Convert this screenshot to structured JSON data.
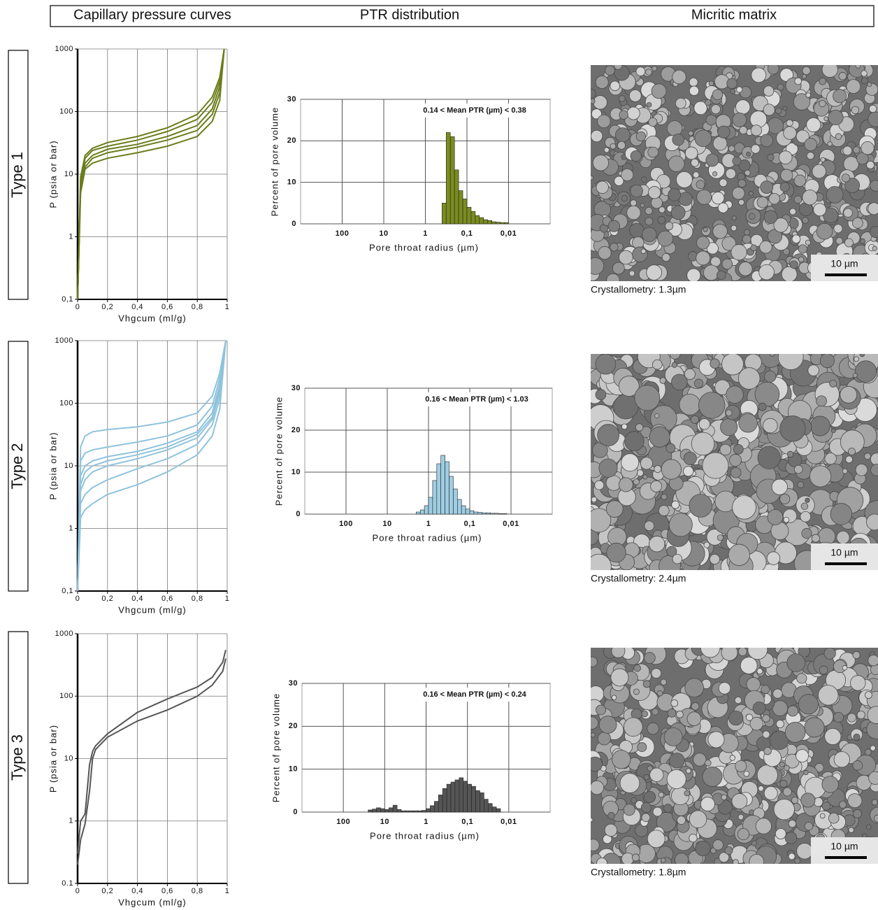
{
  "header": [
    "Capillary pressure curves",
    "PTR distribution",
    "Micritic matrix"
  ],
  "rows": [
    {
      "label": "Type 1",
      "scale_bar": "10 µm",
      "caption": "Crystallometry: 1.3µm"
    },
    {
      "label": "Type 2",
      "scale_bar": "10 µm",
      "caption": "Crystallometry: 2.4µm"
    },
    {
      "label": "Type 3",
      "scale_bar": "10 µm",
      "caption": "Crystallometry: 1.8µm"
    }
  ],
  "chart_data": [
    {
      "type": "line",
      "log_y": true,
      "grid": true,
      "xlabel": "Vhgcum (ml/g)",
      "ylabel": "P (psia or bar)",
      "x": [
        0,
        0.02,
        0.05,
        0.1,
        0.2,
        0.4,
        0.6,
        0.8,
        0.9,
        0.95,
        0.98
      ],
      "series": [
        {
          "color": "#6b7d1a",
          "values": [
            0.1,
            5,
            12,
            15,
            18,
            22,
            28,
            40,
            70,
            150,
            1000
          ]
        },
        {
          "color": "#6b7d1a",
          "values": [
            0.1,
            6,
            13,
            18,
            22,
            27,
            35,
            50,
            90,
            200,
            1000
          ]
        },
        {
          "color": "#6b7d1a",
          "values": [
            0.1,
            7,
            15,
            20,
            25,
            30,
            40,
            60,
            110,
            250,
            1000
          ]
        },
        {
          "color": "#6b7d1a",
          "values": [
            0.1,
            8,
            18,
            24,
            28,
            35,
            48,
            75,
            140,
            300,
            1000
          ]
        },
        {
          "color": "#6b7d1a",
          "values": [
            0.1,
            9,
            20,
            26,
            32,
            40,
            55,
            90,
            170,
            350,
            1000
          ]
        }
      ],
      "xlim": [
        0,
        1
      ],
      "xticks": [
        0,
        {
          "value": 0.2,
          "label": "0,2"
        },
        {
          "value": 0.4,
          "label": "0,4"
        },
        {
          "value": 0.6,
          "label": "0,6"
        },
        {
          "value": 0.8,
          "label": "0,8"
        },
        1
      ],
      "ylim": [
        0.1,
        1000
      ],
      "yticks": [
        {
          "value": 0.1,
          "label": "0,1"
        },
        1,
        10,
        100,
        1000
      ]
    },
    {
      "type": "histogram",
      "log_x": true,
      "grid": true,
      "xlabel": "Pore throat radius (µm)",
      "ylabel": "Percent of pore volume",
      "annotation": "0.14 < Mean PTR (µm) < 0.38",
      "color": "#7a8c1f",
      "bins": [
        0.3981,
        0.3162,
        0.2512,
        0.1995,
        0.1585,
        0.1259,
        0.1,
        0.07943,
        0.0631,
        0.05012,
        0.03981,
        0.03162,
        0.02512,
        0.01995,
        0.01585,
        0.01259,
        0.01
      ],
      "values": [
        5,
        22,
        21,
        13,
        8,
        6,
        4,
        3,
        2,
        1.5,
        1,
        0.8,
        0.5,
        0.4,
        0.3,
        0.3
      ],
      "xlim": [
        1000,
        0.001
      ],
      "xticks": [
        100,
        10,
        1,
        {
          "value": 0.1,
          "label": "0,1"
        },
        {
          "value": 0.01,
          "label": "0,01"
        }
      ],
      "ylim": [
        0,
        30
      ],
      "yticks": [
        0,
        10,
        20,
        30
      ]
    },
    {
      "type": "line",
      "log_y": true,
      "grid": true,
      "xlabel": "Vhgcum (ml/g)",
      "ylabel": "P (psia or bar)",
      "x": [
        0,
        0.02,
        0.05,
        0.1,
        0.2,
        0.4,
        0.6,
        0.8,
        0.9,
        0.95,
        0.99
      ],
      "series": [
        {
          "color": "#8fc3dc",
          "values": [
            0.1,
            1.5,
            2,
            2.5,
            3.5,
            5,
            8,
            15,
            30,
            80,
            1000
          ]
        },
        {
          "color": "#8fc3dc",
          "values": [
            0.1,
            2.5,
            3.5,
            4.5,
            6,
            9,
            13,
            22,
            45,
            120,
            1000
          ]
        },
        {
          "color": "#8fc3dc",
          "values": [
            0.1,
            4,
            6,
            8,
            10,
            13,
            18,
            28,
            55,
            150,
            1000
          ]
        },
        {
          "color": "#8fc3dc",
          "values": [
            0.1,
            5,
            8,
            10,
            12,
            15,
            20,
            32,
            60,
            180,
            1000
          ]
        },
        {
          "color": "#8fc3dc",
          "values": [
            0.1,
            7,
            10,
            12,
            14,
            17,
            23,
            35,
            70,
            200,
            1000
          ]
        },
        {
          "color": "#8fc3dc",
          "values": [
            0.1,
            12,
            16,
            18,
            20,
            24,
            30,
            45,
            90,
            250,
            1000
          ]
        },
        {
          "color": "#8fc3dc",
          "values": [
            0.1,
            20,
            30,
            35,
            38,
            42,
            50,
            70,
            130,
            300,
            1000
          ]
        }
      ],
      "xlim": [
        0,
        1
      ],
      "xticks": [
        0,
        {
          "value": 0.2,
          "label": "0,2"
        },
        {
          "value": 0.4,
          "label": "0,4"
        },
        {
          "value": 0.6,
          "label": "0,6"
        },
        {
          "value": 0.8,
          "label": "0,8"
        },
        1
      ],
      "ylim": [
        0.1,
        1000
      ],
      "yticks": [
        {
          "value": 0.1,
          "label": "0,1"
        },
        1,
        10,
        100,
        1000
      ]
    },
    {
      "type": "histogram",
      "log_x": true,
      "grid": true,
      "xlabel": "Pore throat radius (µm)",
      "ylabel": "Percent of pore volume",
      "annotation": "0.16 < Mean PTR (µm) < 1.03",
      "color": "#9fcde3",
      "bins": [
        1.995,
        1.585,
        1.259,
        1,
        0.7943,
        0.631,
        0.5012,
        0.3981,
        0.3162,
        0.2512,
        0.1995,
        0.1585,
        0.1259,
        0.1,
        0.07943,
        0.0631,
        0.05012,
        0.03981,
        0.03162,
        0.02512,
        0.01995,
        0.01585,
        0.01259
      ],
      "values": [
        0.5,
        1,
        2,
        4,
        8,
        12,
        14,
        12.5,
        9,
        6,
        3.5,
        2,
        1.2,
        0.8,
        0.5,
        0.4,
        0.3,
        0.3,
        0.2,
        0.2,
        0.1,
        0.1
      ],
      "xlim": [
        1000,
        0.001
      ],
      "xticks": [
        100,
        10,
        1,
        {
          "value": 0.1,
          "label": "0,1"
        },
        {
          "value": 0.01,
          "label": "0,01"
        }
      ],
      "ylim": [
        0,
        30
      ],
      "yticks": [
        0,
        10,
        20,
        30
      ]
    },
    {
      "type": "line",
      "log_y": true,
      "grid": true,
      "xlabel": "Vhgcum (ml/g)",
      "ylabel": "P (psia or bar)",
      "x": [
        0,
        0.02,
        0.05,
        0.08,
        0.1,
        0.12,
        0.2,
        0.4,
        0.6,
        0.8,
        0.9,
        0.97,
        0.99
      ],
      "series": [
        {
          "color": "#555555",
          "values": [
            0.2,
            0.5,
            0.9,
            3,
            10,
            14,
            22,
            40,
            60,
            100,
            150,
            250,
            400
          ]
        },
        {
          "color": "#555555",
          "values": [
            0.3,
            1,
            1.3,
            8,
            13,
            16,
            25,
            55,
            90,
            140,
            200,
            350,
            550
          ]
        }
      ],
      "xlim": [
        0,
        1
      ],
      "xticks": [
        0,
        {
          "value": 0.2,
          "label": "0,2"
        },
        {
          "value": 0.4,
          "label": "0,4"
        },
        {
          "value": 0.6,
          "label": "0,6"
        },
        {
          "value": 0.8,
          "label": "0,8"
        },
        1
      ],
      "ylim": [
        0.1,
        1000
      ],
      "yticks": [
        0.1,
        1,
        10,
        100,
        1000
      ]
    },
    {
      "type": "histogram",
      "log_x": true,
      "grid": true,
      "xlabel": "Pore throat radius (µm)",
      "ylabel": "Percent of pore volume",
      "annotation": "0.16 < Mean PTR (µm) < 0.24",
      "color": "#555555",
      "bins": [
        25.12,
        19.95,
        15.85,
        12.59,
        10,
        7.943,
        6.31,
        5.012,
        3.981,
        3.162,
        2.512,
        1.995,
        1.585,
        1.259,
        1,
        0.7943,
        0.631,
        0.5012,
        0.3981,
        0.3162,
        0.2512,
        0.1995,
        0.1585,
        0.1259,
        0.1,
        0.07943,
        0.0631,
        0.05012,
        0.03981,
        0.03162,
        0.02512,
        0.01995,
        0.01585
      ],
      "values": [
        0.5,
        0.7,
        1.0,
        0.8,
        0.6,
        1.0,
        1.6,
        0.6,
        0.3,
        0.3,
        0.3,
        0.3,
        0.3,
        0.4,
        0.8,
        1.5,
        2.5,
        4,
        5.5,
        6.5,
        7,
        7.5,
        8,
        7.2,
        6.5,
        6,
        5,
        4.5,
        3,
        2,
        1.2,
        0.8
      ],
      "xlim": [
        1000,
        0.001
      ],
      "xticks": [
        100,
        10,
        1,
        {
          "value": 0.1,
          "label": "0,1"
        },
        {
          "value": 0.01,
          "label": "0,01"
        }
      ],
      "ylim": [
        0,
        30
      ],
      "yticks": [
        0,
        10,
        20,
        30
      ]
    }
  ]
}
